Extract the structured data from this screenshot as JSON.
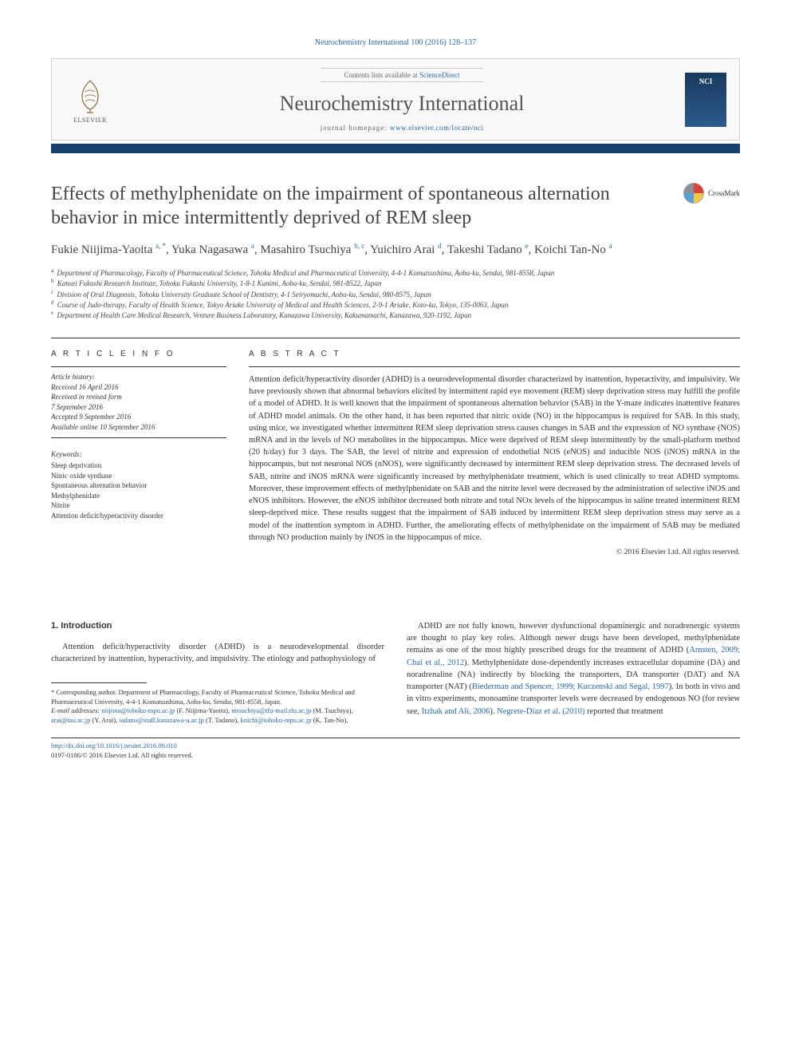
{
  "journal_ref": "Neurochemistry International 100 (2016) 128–137",
  "header": {
    "contents_prefix": "Contents lists available at ",
    "contents_link": "ScienceDirect",
    "journal_title": "Neurochemistry International",
    "homepage_label": "journal homepage: ",
    "homepage_url": "www.elsevier.com/locate/nci",
    "elsevier_brand": "ELSEVIER",
    "cover_acronym": "NCI"
  },
  "colors": {
    "link": "#2968aa",
    "bar": "#14406b",
    "cover_gradient_top": "#1a3a5c",
    "cover_gradient_bottom": "#2a5a8c",
    "text": "#333333"
  },
  "crossmark_label": "CrossMark",
  "title": "Effects of methylphenidate on the impairment of spontaneous alternation behavior in mice intermittently deprived of REM sleep",
  "authors_html": "Fukie Niijima-Yaoita <sup>a, *</sup>, Yuka Nagasawa <sup>a</sup>, Masahiro Tsuchiya <sup>b, c</sup>, Yuichiro Arai <sup>d</sup>, Takeshi Tadano <sup>e</sup>, Koichi Tan-No <sup>a</sup>",
  "affiliations": [
    {
      "sup": "a",
      "text": "Department of Pharmacology, Faculty of Pharmaceutical Science, Tohoku Medical and Pharmaceutical University, 4-4-1 Komatsushima, Aoba-ku, Sendai, 981-8558, Japan"
    },
    {
      "sup": "b",
      "text": "Kansei Fukushi Research Institute, Tohoku Fukushi University, 1-8-1 Kunimi, Aoba-ku, Sendai, 981-8522, Japan"
    },
    {
      "sup": "c",
      "text": "Division of Oral Diagnosis, Tohoku University Graduate School of Dentistry, 4-1 Seiryomachi, Aoba-ku, Sendai, 980-8575, Japan"
    },
    {
      "sup": "d",
      "text": "Course of Judo-therapy, Faculty of Health Science, Tokyo Ariake University of Medical and Health Sciences, 2-9-1 Ariake, Koto-ku, Tokyo, 135-0063, Japan"
    },
    {
      "sup": "e",
      "text": "Department of Health Care Medical Research, Venture Business Laboratory, Kanazawa University, Kakumamachi, Kanazawa, 920-1192, Japan"
    }
  ],
  "article_info": {
    "label": "A R T I C L E   I N F O",
    "history_hdr": "Article history:",
    "history": [
      "Received 16 April 2016",
      "Received in revised form",
      "7 September 2016",
      "Accepted 9 September 2016",
      "Available online 10 September 2016"
    ],
    "keywords_hdr": "Keywords:",
    "keywords": [
      "Sleep deprivation",
      "Nitric oxide synthase",
      "Spontaneous alternation behavior",
      "Methylphenidate",
      "Nitrite",
      "Attention deficit/hyperactivity disorder"
    ]
  },
  "abstract": {
    "label": "A B S T R A C T",
    "text": "Attention deficit/hyperactivity disorder (ADHD) is a neurodevelopmental disorder characterized by inattention, hyperactivity, and impulsivity. We have previously shown that abnormal behaviors elicited by intermittent rapid eye movement (REM) sleep deprivation stress may fulfill the profile of a model of ADHD. It is well known that the impairment of spontaneous alternation behavior (SAB) in the Y-maze indicates inattentive features of ADHD model animals. On the other hand, it has been reported that nitric oxide (NO) in the hippocampus is required for SAB. In this study, using mice, we investigated whether intermittent REM sleep deprivation stress causes changes in SAB and the expression of NO synthase (NOS) mRNA and in the levels of NO metabolites in the hippocampus. Mice were deprived of REM sleep intermittently by the small-platform method (20 h/day) for 3 days. The SAB, the level of nitrite and expression of endothelial NOS (eNOS) and inducible NOS (iNOS) mRNA in the hippocampus, but not neuronal NOS (nNOS), were significantly decreased by intermittent REM sleep deprivation stress. The decreased levels of SAB, nitrite and iNOS mRNA were significantly increased by methylphenidate treatment, which is used clinically to treat ADHD symptoms. Moreover, these improvement effects of methylphenidate on SAB and the nitrite level were decreased by the administration of selective iNOS and eNOS inhibitors. However, the eNOS inhibitor decreased both nitrate and total NOx levels of the hippocampus in saline treated intermittent REM sleep-deprived mice. These results suggest that the impairment of SAB induced by intermittent REM sleep deprivation stress may serve as a model of the inattention symptom in ADHD. Further, the ameliorating effects of methylphenidate on the impairment of SAB may be mediated through NO production mainly by iNOS in the hippocampus of mice.",
    "copyright": "© 2016 Elsevier Ltd. All rights reserved."
  },
  "body": {
    "intro_heading": "1. Introduction",
    "left_paragraph": "Attention deficit/hyperactivity disorder (ADHD) is a neurodevelopmental disorder characterized by inattention, hyperactivity, and impulsivity. The etiology and pathophysiology of",
    "right_paragraph_parts": [
      {
        "type": "text",
        "text": "ADHD are not fully known, however dysfunctional dopaminergic and noradrenergic systems are thought to play key roles. Although newer drugs have been developed, methylphenidate remains as one of the most highly prescribed drugs for the treatment of ADHD ("
      },
      {
        "type": "link",
        "text": "Arnsten, 2009; Chai et al., 2012"
      },
      {
        "type": "text",
        "text": "). Methylphenidate dose-dependently increases extracellular dopamine (DA) and noradrenaline (NA) indirectly by blocking the transporters, DA transporter (DAT) and NA transporter (NAT) ("
      },
      {
        "type": "link",
        "text": "Biederman and Spencer, 1999; Kuczenski and Segal, 1997"
      },
      {
        "type": "text",
        "text": "). In both in vivo and in vitro experiments, monoamine transporter levels were decreased by endogenous NO (for review see, "
      },
      {
        "type": "link",
        "text": "Itzhak and Ali, 2006"
      },
      {
        "type": "text",
        "text": "). "
      },
      {
        "type": "link",
        "text": "Negrete-Díaz et al. (2010)"
      },
      {
        "type": "text",
        "text": " reported that treatment"
      }
    ]
  },
  "footnotes": {
    "corresponding": "* Corresponding author. Department of Pharmacology, Faculty of Pharmaceutical Science, Tohoku Medical and Pharmaceutical University, 4-4-1 Komatsushima, Aoba-ku, Sendai, 981-8558, Japan.",
    "email_label": "E-mail addresses: ",
    "emails": [
      {
        "addr": "niijima@tohoku-mpu.ac.jp",
        "who": " (F. Niijima-Yaoita), "
      },
      {
        "addr": "mtsuchiya@tfu-mail.tfu.ac.jp",
        "who": " (M. Tsuchiya), "
      },
      {
        "addr": "arai@tau.ac.jp",
        "who": " (Y. Arai), "
      },
      {
        "addr": "tadano@staff.kanazawa-u.ac.jp",
        "who": " (T. Tadano), "
      },
      {
        "addr": "koichi@tohoku-mpu.ac.jp",
        "who": " (K. Tan-No)."
      }
    ]
  },
  "footer": {
    "doi": "http://dx.doi.org/10.1016/j.neuint.2016.09.010",
    "issn": "0197-0186/© 2016 Elsevier Ltd. All rights reserved."
  }
}
